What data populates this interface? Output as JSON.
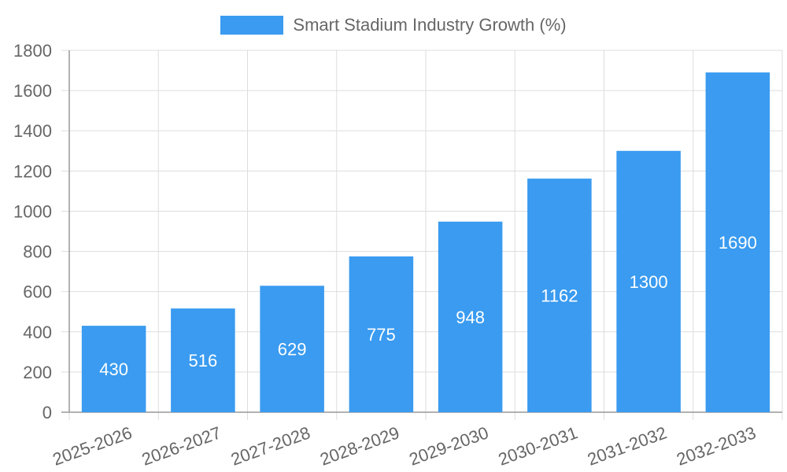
{
  "chart_data": {
    "type": "bar",
    "title": "",
    "xlabel": "",
    "ylabel": "",
    "categories": [
      "2025-2026",
      "2026-2027",
      "2027-2028",
      "2028-2029",
      "2029-2030",
      "2030-2031",
      "2031-2032",
      "2032-2033"
    ],
    "series": [
      {
        "name": "Smart Stadium Industry Growth (%)",
        "values": [
          430,
          516,
          629,
          775,
          948,
          1162,
          1300,
          1690
        ]
      }
    ],
    "ylim": [
      0,
      1800
    ],
    "yticks": [
      "0",
      "200",
      "400",
      "600",
      "800",
      "1000",
      "1200",
      "1400",
      "1600",
      "1800"
    ],
    "grid": true,
    "legend_position": "top-center",
    "bar_color": "#3a9bf0",
    "label_color": "#ffffff",
    "axis_text_color": "#666666",
    "grid_color": "#dddddd"
  }
}
